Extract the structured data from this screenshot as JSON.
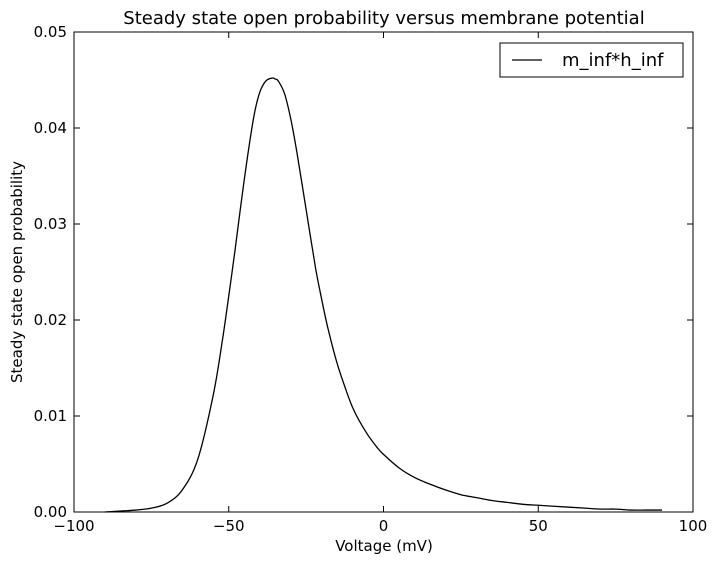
{
  "chart_data": {
    "type": "line",
    "title": "Steady state open probability versus membrane potential",
    "xlabel": "Voltage (mV)",
    "ylabel": "Steady state open probability",
    "xlim": [
      -100,
      100
    ],
    "ylim": [
      0,
      0.05
    ],
    "xticks": [
      {
        "value": -100,
        "label": "−100"
      },
      {
        "value": -50,
        "label": "−50"
      },
      {
        "value": 0,
        "label": "0"
      },
      {
        "value": 50,
        "label": "50"
      },
      {
        "value": 100,
        "label": "100"
      }
    ],
    "yticks": [
      {
        "value": 0,
        "label": "0.00"
      },
      {
        "value": 0.01,
        "label": "0.01"
      },
      {
        "value": 0.02,
        "label": "0.02"
      },
      {
        "value": 0.03,
        "label": "0.03"
      },
      {
        "value": 0.04,
        "label": "0.04"
      },
      {
        "value": 0.05,
        "label": "0.05"
      }
    ],
    "grid": false,
    "legend_position": "top-right",
    "series": [
      {
        "name": "m_inf*h_inf",
        "color": "#000000",
        "x": [
          -90,
          -85,
          -80,
          -75,
          -70,
          -65,
          -60,
          -55,
          -52,
          -50,
          -48,
          -45,
          -42,
          -40,
          -38,
          -36,
          -35,
          -34,
          -32,
          -30,
          -28,
          -25,
          -22,
          -20,
          -18,
          -15,
          -12,
          -10,
          -8,
          -5,
          -2,
          0,
          5,
          10,
          15,
          20,
          25,
          30,
          35,
          40,
          45,
          50,
          55,
          60,
          65,
          70,
          75,
          80,
          85,
          90
        ],
        "y": [
          0.0,
          0.0001,
          0.0002,
          0.0004,
          0.0009,
          0.0023,
          0.0055,
          0.0122,
          0.018,
          0.0225,
          0.0272,
          0.0346,
          0.041,
          0.0437,
          0.0449,
          0.0452,
          0.0451,
          0.0449,
          0.0436,
          0.041,
          0.0375,
          0.0315,
          0.0255,
          0.0222,
          0.0192,
          0.0155,
          0.0126,
          0.0109,
          0.0096,
          0.008,
          0.0067,
          0.006,
          0.0046,
          0.0036,
          0.0029,
          0.0023,
          0.0018,
          0.0015,
          0.0012,
          0.001,
          0.0008,
          0.0007,
          0.0006,
          0.0005,
          0.0004,
          0.0003,
          0.0003,
          0.0002,
          0.0002,
          0.0002
        ]
      }
    ]
  }
}
